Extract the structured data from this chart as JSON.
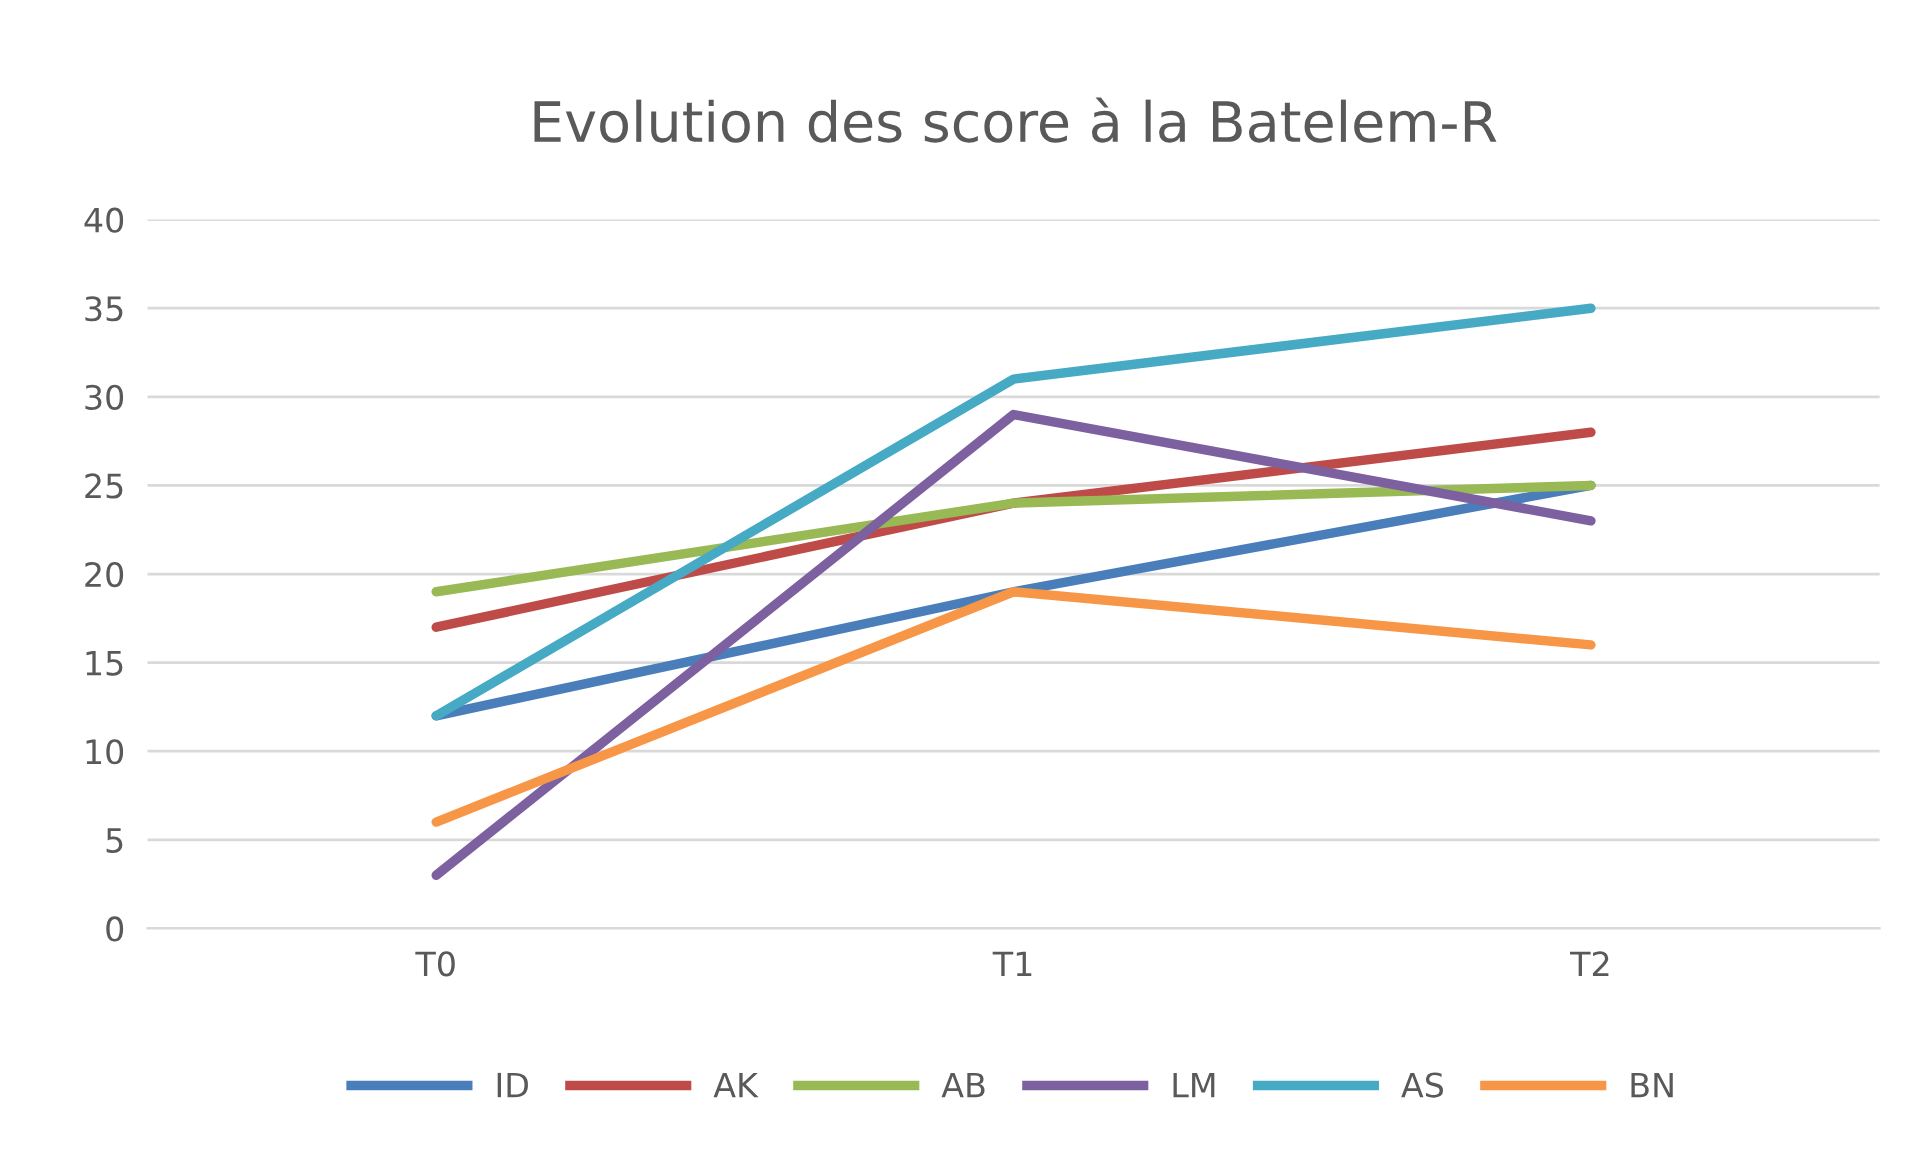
{
  "chart_data": {
    "type": "line",
    "title": "Evolution des score à la Batelem-R",
    "categories": [
      "T0",
      "T1",
      "T2"
    ],
    "series": [
      {
        "name": "ID",
        "color": "#4a7ebb",
        "values": [
          12,
          19,
          25
        ]
      },
      {
        "name": "AK",
        "color": "#be4b48",
        "values": [
          17,
          24,
          28
        ]
      },
      {
        "name": "AB",
        "color": "#98b954",
        "values": [
          19,
          24,
          25
        ]
      },
      {
        "name": "LM",
        "color": "#7d60a0",
        "values": [
          3,
          29,
          23
        ]
      },
      {
        "name": "AS",
        "color": "#46aac5",
        "values": [
          12,
          31,
          35
        ]
      },
      {
        "name": "BN",
        "color": "#f79646",
        "values": [
          6,
          19,
          16
        ]
      }
    ],
    "ylim": [
      0,
      40
    ],
    "yticks": [
      0,
      5,
      10,
      15,
      20,
      25,
      30,
      35,
      40
    ],
    "grid": "y",
    "legend": "bottom",
    "marker": "none",
    "line_style": "solid"
  }
}
